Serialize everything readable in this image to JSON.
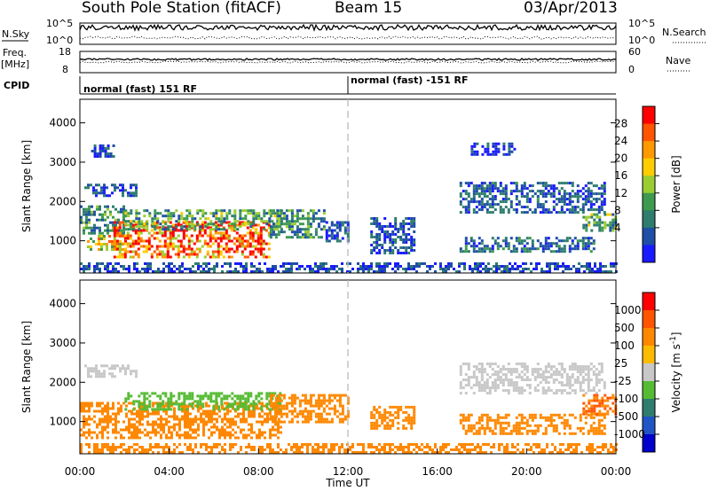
{
  "header": {
    "station": "South Pole Station (fitACF)",
    "beam": "Beam 15",
    "date": "03/Apr/2013"
  },
  "top_panels": {
    "nsky": {
      "label": "N.Sky",
      "ticks": [
        "10^5",
        "10^0"
      ],
      "right_label": "N.Search",
      "right_ticks": [
        "10^5",
        "10^0"
      ]
    },
    "freq": {
      "label_line1": "Freq.",
      "label_line2": "[MHz]",
      "ticks": [
        "18",
        "8"
      ],
      "right_label": "Nave",
      "right_ticks": [
        "60",
        "0"
      ]
    },
    "cpid": {
      "label": "CPID",
      "segments": [
        "normal (fast) 151 RF",
        "normal (fast) -151 RF"
      ]
    }
  },
  "chart_data": [
    {
      "type": "heatmap",
      "ylabel": "Slant Range [km]",
      "xlabel": "",
      "xlim": [
        0,
        24
      ],
      "ylim": [
        180,
        4600
      ],
      "yticks": [
        1000,
        2000,
        3000,
        4000
      ],
      "colorbar": {
        "label": "Power [dB]",
        "ticks": [
          "28",
          "24",
          "20",
          "16",
          "12",
          "8",
          "4"
        ],
        "min": 0,
        "max": 32,
        "colors": [
          "#1a1aff",
          "#1f4fa6",
          "#2e7d6e",
          "#3e9a4f",
          "#9acd32",
          "#ffcc00",
          "#ff9900",
          "#ff5500",
          "#ff0000"
        ]
      },
      "regions": [
        {
          "t0": 0.2,
          "t1": 2.5,
          "r0": 2150,
          "r1": 2450,
          "value": 6
        },
        {
          "t0": 0.0,
          "t1": 2.0,
          "r0": 1200,
          "r1": 1900,
          "value": 10
        },
        {
          "t0": 0.2,
          "t1": 2.0,
          "r0": 750,
          "r1": 1150,
          "value": 20
        },
        {
          "t0": 1.5,
          "t1": 8.5,
          "r0": 600,
          "r1": 1500,
          "value": 26
        },
        {
          "t0": 2.0,
          "t1": 9.0,
          "r0": 1300,
          "r1": 1800,
          "value": 12
        },
        {
          "t0": 8.5,
          "t1": 11.0,
          "r0": 1100,
          "r1": 1800,
          "value": 10
        },
        {
          "t0": 11.0,
          "t1": 12.0,
          "r0": 1000,
          "r1": 1500,
          "value": 6
        },
        {
          "t0": 13.0,
          "t1": 15.0,
          "r0": 700,
          "r1": 1600,
          "value": 5
        },
        {
          "t0": 17.0,
          "t1": 23.5,
          "r0": 1750,
          "r1": 2500,
          "value": 6
        },
        {
          "t0": 17.0,
          "t1": 23.0,
          "r0": 700,
          "r1": 1100,
          "value": 7
        },
        {
          "t0": 22.5,
          "t1": 24.0,
          "r0": 1250,
          "r1": 1700,
          "value": 12
        },
        {
          "t0": 17.5,
          "t1": 19.5,
          "r0": 3200,
          "r1": 3500,
          "value": 4
        },
        {
          "t0": 0.5,
          "t1": 1.5,
          "r0": 3150,
          "r1": 3450,
          "value": 4
        },
        {
          "t0": 0.0,
          "t1": 24.0,
          "r0": 200,
          "r1": 450,
          "value": 5
        }
      ]
    },
    {
      "type": "heatmap",
      "ylabel": "Slant Range [km]",
      "xlabel": "Time UT",
      "xlim": [
        0,
        24
      ],
      "ylim": [
        180,
        4600
      ],
      "xticks": [
        "00:00",
        "04:00",
        "08:00",
        "12:00",
        "16:00",
        "20:00",
        "00:00"
      ],
      "yticks": [
        1000,
        2000,
        3000,
        4000
      ],
      "colorbar": {
        "label": "Velocity [m s^-1]",
        "ticks": [
          "1000",
          "500",
          "100",
          "25",
          "-25",
          "-100",
          "-500",
          "-1000"
        ],
        "colors": [
          "#0000cc",
          "#1f55c4",
          "#2e7d6e",
          "#55bb33",
          "#c8c8c8",
          "#ffbb00",
          "#ff8800",
          "#ff5500",
          "#ff0000"
        ]
      },
      "regions": [
        {
          "t0": 0.2,
          "t1": 2.5,
          "r0": 2150,
          "r1": 2450,
          "value": 0
        },
        {
          "t0": 0.0,
          "t1": 9.0,
          "r0": 600,
          "r1": 1500,
          "value": -300
        },
        {
          "t0": 2.0,
          "t1": 9.0,
          "r0": 1300,
          "r1": 1750,
          "value": 60
        },
        {
          "t0": 8.5,
          "t1": 12.0,
          "r0": 1000,
          "r1": 1700,
          "value": -250
        },
        {
          "t0": 13.0,
          "t1": 15.0,
          "r0": 800,
          "r1": 1400,
          "value": -200
        },
        {
          "t0": 17.0,
          "t1": 23.5,
          "r0": 1750,
          "r1": 2500,
          "value": 0
        },
        {
          "t0": 17.0,
          "t1": 23.5,
          "r0": 700,
          "r1": 1200,
          "value": -300
        },
        {
          "t0": 22.5,
          "t1": 24.0,
          "r0": 1200,
          "r1": 1700,
          "value": -500
        },
        {
          "t0": 0.0,
          "t1": 24.0,
          "r0": 200,
          "r1": 450,
          "value": -150
        }
      ]
    }
  ]
}
